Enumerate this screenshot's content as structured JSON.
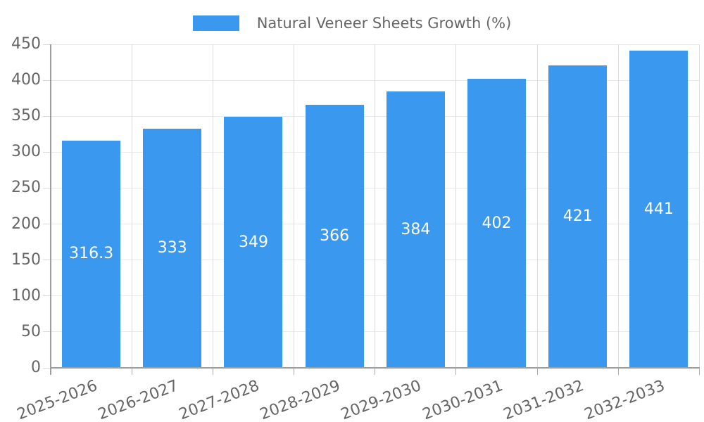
{
  "chart_data": {
    "type": "bar",
    "title": "Natural Veneer Sheets Growth (%)",
    "legend_position": "top",
    "categories": [
      "2025-2026",
      "2026-2027",
      "2027-2028",
      "2028-2029",
      "2029-2030",
      "2030-2031",
      "2031-2032",
      "2032-2033"
    ],
    "series": [
      {
        "name": "Natural Veneer Sheets Growth (%)",
        "values": [
          316.3,
          333,
          349,
          366,
          384,
          402,
          421,
          441
        ]
      }
    ],
    "value_labels": [
      "316.3",
      "333",
      "349",
      "366",
      "384",
      "402",
      "421",
      "441"
    ],
    "xlabel": "",
    "ylabel": "",
    "ylim": [
      0,
      450
    ],
    "y_ticks": [
      0,
      50,
      100,
      150,
      200,
      250,
      300,
      350,
      400,
      450
    ],
    "grid": true,
    "colors": {
      "bar": "#3a99ee",
      "bar_label": "#ffffff",
      "grid_horizontal": "#e8e8e8",
      "grid_vertical": "#dcdcdc",
      "y_tick_mark": "#d9d9d9",
      "x_tick_mark": "#adadad",
      "axis_border": "#9e9e9e",
      "tick_text": "#666666",
      "legend_text": "#666666"
    }
  }
}
